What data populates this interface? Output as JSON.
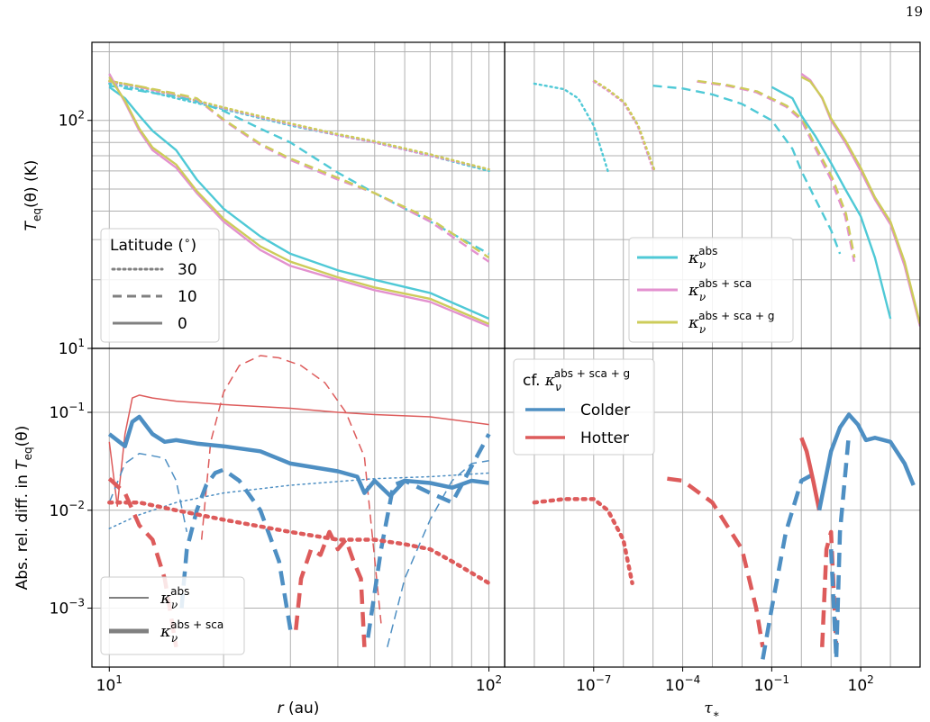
{
  "page": {
    "number": "19"
  },
  "colors": {
    "abs": "#4fc9d6",
    "abs_sca": "#e391cf",
    "abs_sca_g": "#cdcc5a",
    "colder": "#4e8fc3",
    "hotter": "#dd5b5b",
    "legend_gray": "#808080",
    "grid": "#b0b0b0"
  },
  "chart_data": [
    {
      "id": "top-left",
      "type": "line",
      "xscale": "log",
      "yscale": "log",
      "xlim": [
        9,
        110
      ],
      "ylim": [
        10,
        220
      ],
      "ylabel": "T_eq(θ) (K)",
      "xlabel": "",
      "yticks": [
        {
          "value": 10,
          "label": "10^1"
        },
        {
          "value": 100,
          "label": "10^2"
        }
      ],
      "legend": {
        "title": "Latitude (°)",
        "placement": "lower-left",
        "entries": [
          {
            "label": "30",
            "style": "dotted"
          },
          {
            "label": "10",
            "style": "dashed"
          },
          {
            "label": "0",
            "style": "solid"
          }
        ]
      },
      "series": [
        {
          "model": "abs",
          "latitude": 30,
          "x": [
            10,
            12,
            15,
            20,
            30,
            40,
            50,
            70,
            100
          ],
          "y": [
            145,
            137,
            125,
            112,
            95,
            86,
            80,
            70,
            60
          ]
        },
        {
          "model": "abs_sca",
          "latitude": 30,
          "x": [
            10,
            12,
            15,
            20,
            30,
            40,
            50,
            70,
            100
          ],
          "y": [
            148,
            140,
            128,
            113,
            96,
            86,
            80,
            70,
            61
          ]
        },
        {
          "model": "abs_sca_g",
          "latitude": 30,
          "x": [
            10,
            12,
            15,
            20,
            30,
            40,
            50,
            70,
            100
          ],
          "y": [
            149,
            141,
            129,
            114,
            97,
            87,
            81,
            71,
            61
          ]
        },
        {
          "model": "abs",
          "latitude": 10,
          "x": [
            10,
            12,
            15,
            17,
            20,
            25,
            30,
            40,
            50,
            70,
            100
          ],
          "y": [
            142,
            135,
            127,
            121,
            110,
            92,
            80,
            59,
            48,
            36,
            26
          ]
        },
        {
          "model": "abs_sca",
          "latitude": 10,
          "x": [
            10,
            12,
            15,
            17,
            20,
            25,
            30,
            40,
            50,
            70,
            100
          ],
          "y": [
            148,
            140,
            130,
            124,
            100,
            78,
            67,
            55,
            48,
            36,
            24
          ]
        },
        {
          "model": "abs_sca_g",
          "latitude": 10,
          "x": [
            10,
            12,
            15,
            17,
            20,
            25,
            30,
            40,
            50,
            70,
            100
          ],
          "y": [
            149,
            141,
            131,
            125,
            101,
            79,
            68,
            56,
            48,
            37,
            25
          ]
        },
        {
          "model": "abs",
          "latitude": 0,
          "x": [
            10,
            11,
            12,
            13,
            15,
            17,
            20,
            25,
            30,
            40,
            50,
            70,
            100
          ],
          "y": [
            140,
            125,
            105,
            90,
            74,
            55,
            41,
            31,
            26,
            22,
            20,
            17.5,
            13.5
          ]
        },
        {
          "model": "abs_sca",
          "latitude": 0,
          "x": [
            10,
            11,
            12,
            13,
            15,
            17,
            20,
            25,
            30,
            40,
            50,
            70,
            100
          ],
          "y": [
            160,
            120,
            90,
            74,
            62,
            48,
            36,
            27,
            23,
            20,
            18,
            16,
            12.5
          ]
        },
        {
          "model": "abs_sca_g",
          "latitude": 0,
          "x": [
            10,
            11,
            12,
            13,
            15,
            17,
            20,
            25,
            30,
            40,
            50,
            70,
            100
          ],
          "y": [
            155,
            122,
            92,
            76,
            64,
            49,
            37,
            28,
            24,
            20.5,
            18.5,
            16.5,
            12.8
          ]
        }
      ]
    },
    {
      "id": "top-right",
      "type": "line",
      "xscale": "log",
      "yscale": "log",
      "xlim": [
        1e-10,
        10000.0
      ],
      "ylim": [
        10,
        220
      ],
      "legend": {
        "placement": "lower-right",
        "entries": [
          {
            "label": "κν^abs",
            "model": "abs"
          },
          {
            "label": "κν^abs+sca",
            "model": "abs_sca"
          },
          {
            "label": "κν^abs+sca+g",
            "model": "abs_sca_g"
          }
        ]
      },
      "series": [
        {
          "model": "abs",
          "latitude": 30,
          "x": [
            1e-09,
            1e-08,
            3e-08,
            1e-07,
            3e-07
          ],
          "y": [
            145,
            137,
            125,
            95,
            60
          ]
        },
        {
          "model": "abs_sca",
          "latitude": 30,
          "x": [
            1e-07,
            3e-07,
            1e-06,
            3e-06,
            1e-05
          ],
          "y": [
            148,
            135,
            120,
            95,
            61
          ]
        },
        {
          "model": "abs_sca_g",
          "latitude": 30,
          "x": [
            1.1e-07,
            3.2e-07,
            1.1e-06,
            3.2e-06,
            1.1e-05
          ],
          "y": [
            149,
            136,
            120,
            95,
            61
          ]
        },
        {
          "model": "abs",
          "latitude": 10,
          "x": [
            1e-05,
            0.0001,
            0.001,
            0.01,
            0.1,
            0.5,
            1,
            3,
            10,
            20
          ],
          "y": [
            142,
            138,
            130,
            118,
            100,
            75,
            60,
            45,
            33,
            26
          ]
        },
        {
          "model": "abs_sca",
          "latitude": 10,
          "x": [
            0.0003,
            0.003,
            0.03,
            0.3,
            1,
            3,
            10,
            30,
            60
          ],
          "y": [
            148,
            142,
            133,
            115,
            100,
            75,
            55,
            38,
            24
          ]
        },
        {
          "model": "abs_sca_g",
          "latitude": 10,
          "x": [
            0.00032,
            0.0032,
            0.032,
            0.32,
            1.1,
            3.2,
            11,
            32,
            62
          ],
          "y": [
            149,
            143,
            134,
            116,
            101,
            76,
            56,
            39,
            25
          ]
        },
        {
          "model": "abs",
          "latitude": 0,
          "x": [
            0.1,
            0.5,
            1,
            3,
            10,
            30,
            100,
            300,
            1000
          ],
          "y": [
            140,
            125,
            105,
            85,
            65,
            50,
            38,
            25,
            13.5
          ]
        },
        {
          "model": "abs_sca",
          "latitude": 0,
          "x": [
            1,
            2,
            5,
            10,
            30,
            100,
            300,
            1000,
            3000,
            10000.0
          ],
          "y": [
            160,
            150,
            125,
            100,
            80,
            60,
            45,
            35,
            23,
            12.5
          ]
        },
        {
          "model": "abs_sca_g",
          "latitude": 0,
          "x": [
            1,
            2,
            5,
            10,
            30,
            100,
            300,
            1000,
            3000,
            10000.0
          ],
          "y": [
            155,
            148,
            126,
            102,
            82,
            62,
            46,
            36,
            24,
            12.8
          ]
        }
      ]
    },
    {
      "id": "bottom-left",
      "type": "line",
      "xscale": "log",
      "yscale": "log",
      "xlim": [
        9,
        110
      ],
      "ylim": [
        0.00025,
        0.45
      ],
      "xlabel": "r (au)",
      "ylabel": "Abs. rel. diff. in T_eq(θ)",
      "xticks": [
        {
          "value": 10,
          "label": "10^1"
        },
        {
          "value": 100,
          "label": "10^2"
        }
      ],
      "yticks": [
        {
          "value": 0.001,
          "label": "10^-3"
        },
        {
          "value": 0.01,
          "label": "10^-2"
        },
        {
          "value": 0.1,
          "label": "10^-1"
        }
      ],
      "legend": {
        "placement": "lower-left",
        "entries": [
          {
            "label": "κν^abs",
            "width": "thin"
          },
          {
            "label": "κν^abs+sca",
            "width": "thick"
          }
        ]
      },
      "series": [
        {
          "comparison": "abs",
          "sign": "hotter",
          "latitude": 0,
          "x": [
            10,
            10.5,
            11,
            11.5,
            12,
            13,
            15,
            20,
            30,
            40,
            50,
            70,
            100
          ],
          "y": [
            0.05,
            0.011,
            0.06,
            0.14,
            0.15,
            0.14,
            0.13,
            0.12,
            0.11,
            0.1,
            0.095,
            0.09,
            0.075
          ]
        },
        {
          "comparison": "abs",
          "sign": "hotter",
          "latitude": 10,
          "x": [
            17.5,
            18.5,
            20,
            22,
            25,
            28,
            32,
            37,
            42,
            47,
            52
          ],
          "y": [
            0.005,
            0.05,
            0.16,
            0.3,
            0.38,
            0.36,
            0.3,
            0.2,
            0.1,
            0.035,
            0.0007
          ]
        },
        {
          "comparison": "abs",
          "sign": "colder",
          "latitude": 10,
          "x": [
            10,
            11,
            12,
            13,
            14,
            15,
            16
          ],
          "y": [
            0.012,
            0.03,
            0.038,
            0.036,
            0.034,
            0.02,
            0.006
          ]
        },
        {
          "comparison": "abs",
          "sign": "colder",
          "latitude": 10,
          "x": [
            54,
            60,
            70,
            80,
            90,
            100
          ],
          "y": [
            0.0004,
            0.002,
            0.008,
            0.02,
            0.03,
            0.032
          ]
        },
        {
          "comparison": "abs",
          "sign": "colder",
          "latitude": 30,
          "x": [
            10,
            12,
            15,
            20,
            30,
            50,
            70,
            100
          ],
          "y": [
            0.0065,
            0.009,
            0.012,
            0.015,
            0.018,
            0.021,
            0.022,
            0.024
          ]
        },
        {
          "comparison": "abs_sca",
          "sign": "colder",
          "latitude": 0,
          "x": [
            10,
            11,
            11.5,
            12,
            13,
            14,
            15,
            17,
            20,
            25,
            30,
            40,
            45,
            47,
            50,
            55,
            60,
            70,
            80,
            90,
            100
          ],
          "y": [
            0.06,
            0.045,
            0.08,
            0.09,
            0.06,
            0.05,
            0.052,
            0.048,
            0.045,
            0.04,
            0.03,
            0.025,
            0.022,
            0.015,
            0.02,
            0.014,
            0.02,
            0.019,
            0.017,
            0.02,
            0.019
          ]
        },
        {
          "comparison": "abs_sca",
          "sign": "hotter",
          "latitude": 10,
          "x": [
            10,
            11,
            12,
            13,
            14,
            15
          ],
          "y": [
            0.021,
            0.015,
            0.007,
            0.005,
            0.002,
            0.0004
          ]
        },
        {
          "comparison": "abs_sca",
          "sign": "colder",
          "latitude": 10,
          "x": [
            15.5,
            16,
            17,
            18,
            19,
            20,
            22,
            25,
            28,
            30
          ],
          "y": [
            0.001,
            0.004,
            0.01,
            0.018,
            0.024,
            0.026,
            0.02,
            0.01,
            0.003,
            0.0006
          ]
        },
        {
          "comparison": "abs_sca",
          "sign": "hotter",
          "latitude": 10,
          "x": [
            31,
            32,
            34,
            36,
            38,
            40,
            42,
            44,
            46,
            47
          ],
          "y": [
            0.0006,
            0.002,
            0.004,
            0.0035,
            0.006,
            0.004,
            0.005,
            0.003,
            0.002,
            0.0004
          ]
        },
        {
          "comparison": "abs_sca",
          "sign": "colder",
          "latitude": 10,
          "x": [
            48,
            52,
            56,
            60,
            70,
            80,
            100
          ],
          "y": [
            0.0005,
            0.004,
            0.018,
            0.02,
            0.015,
            0.012,
            0.06
          ]
        },
        {
          "comparison": "abs_sca",
          "sign": "hotter",
          "latitude": 30,
          "x": [
            10,
            12,
            15,
            20,
            30,
            40,
            50,
            60,
            70,
            80,
            100
          ],
          "y": [
            0.012,
            0.012,
            0.01,
            0.008,
            0.006,
            0.005,
            0.005,
            0.0045,
            0.004,
            0.003,
            0.0018
          ]
        }
      ]
    },
    {
      "id": "bottom-right",
      "type": "line",
      "xscale": "log",
      "yscale": "log",
      "xlim": [
        1e-10,
        10000.0
      ],
      "ylim": [
        0.00025,
        0.45
      ],
      "xlabel": "τ*",
      "xticks": [
        {
          "value": 1e-07,
          "label": "10^-7"
        },
        {
          "value": 0.0001,
          "label": "10^-4"
        },
        {
          "value": 0.1,
          "label": "10^-1"
        },
        {
          "value": 100,
          "label": "10^2"
        }
      ],
      "legend": {
        "title": "cf. κν^abs+sca+g",
        "placement": "upper-left",
        "entries": [
          {
            "label": "Colder",
            "sign": "colder"
          },
          {
            "label": "Hotter",
            "sign": "hotter"
          }
        ]
      },
      "series": [
        {
          "sign": "hotter",
          "latitude": 30,
          "x": [
            1e-09,
            1e-08,
            1e-07,
            3e-07,
            1e-06,
            2e-06
          ],
          "y": [
            0.012,
            0.013,
            0.013,
            0.01,
            0.005,
            0.0018
          ]
        },
        {
          "sign": "hotter",
          "latitude": 10,
          "x": [
            3e-05,
            0.0001,
            0.001,
            0.01,
            0.03,
            0.05
          ],
          "y": [
            0.021,
            0.02,
            0.012,
            0.004,
            0.001,
            0.0004
          ]
        },
        {
          "sign": "colder",
          "latitude": 10,
          "x": [
            0.05,
            0.1,
            0.3,
            1,
            3
          ],
          "y": [
            0.0003,
            0.001,
            0.006,
            0.02,
            0.024
          ]
        },
        {
          "sign": "hotter",
          "latitude": 10,
          "x": [
            5,
            7,
            10,
            15
          ],
          "y": [
            0.0004,
            0.004,
            0.006,
            0.0004
          ]
        },
        {
          "sign": "colder",
          "latitude": 10,
          "x": [
            10,
            15,
            20,
            40
          ],
          "y": [
            0.004,
            0.0003,
            0.006,
            0.06
          ]
        },
        {
          "sign": "hotter",
          "latitude": 0,
          "x": [
            1,
            1.5,
            2.5,
            4
          ],
          "y": [
            0.055,
            0.04,
            0.02,
            0.01
          ]
        },
        {
          "sign": "colder",
          "latitude": 0,
          "x": [
            4,
            10,
            20,
            40,
            80,
            150,
            300,
            1000,
            3000,
            6000
          ],
          "y": [
            0.01,
            0.04,
            0.07,
            0.095,
            0.075,
            0.052,
            0.055,
            0.05,
            0.03,
            0.018
          ]
        }
      ]
    }
  ]
}
